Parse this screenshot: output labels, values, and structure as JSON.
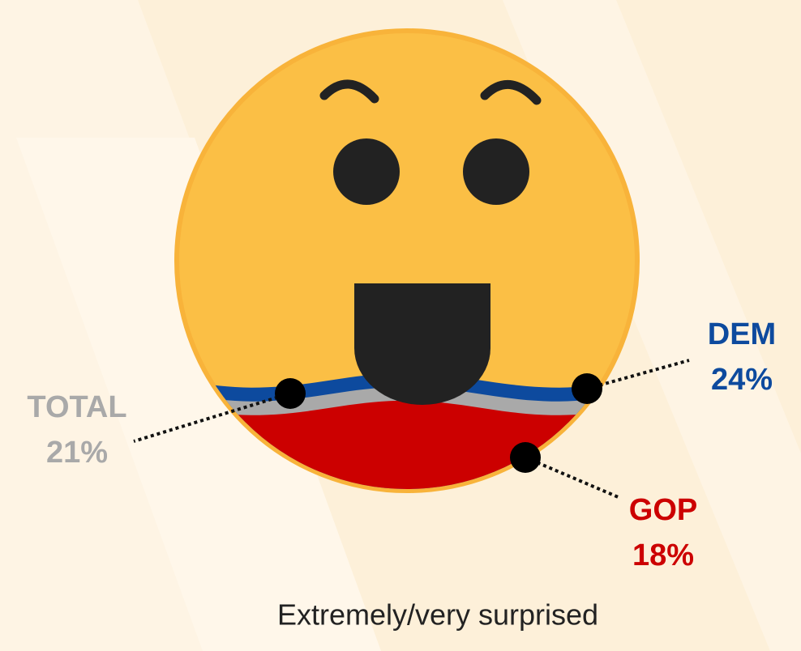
{
  "chart_data": {
    "type": "fill",
    "caption": "Extremely/very surprised",
    "series": [
      {
        "name": "DEM",
        "color": "#0d4a9e",
        "values": [
          24
        ],
        "value_labels": [
          "24%"
        ]
      },
      {
        "name": "TOTAL",
        "color": "#a9a9a9",
        "values": [
          21
        ],
        "value_labels": [
          "21%"
        ]
      },
      {
        "name": "GOP",
        "color": "#cc0000",
        "values": [
          18
        ],
        "value_labels": [
          "18%"
        ]
      }
    ]
  }
}
